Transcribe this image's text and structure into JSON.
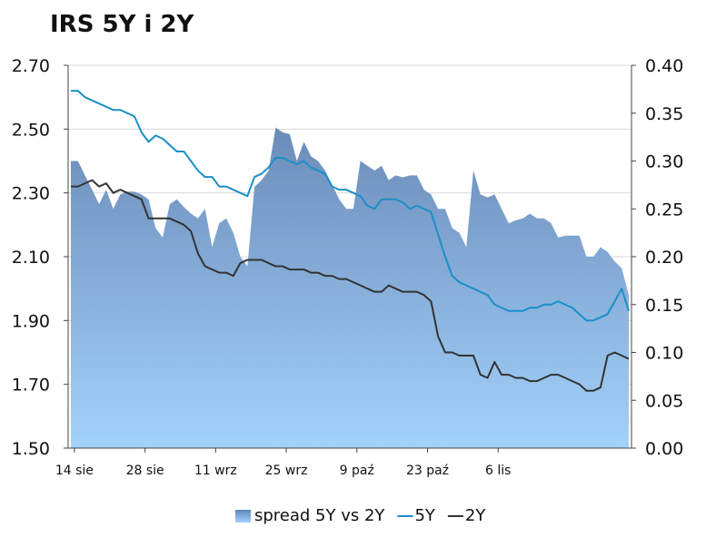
{
  "chart_data": {
    "type": "line",
    "title": "IRS 5Y i 2Y",
    "xlabel": "",
    "ylabel": "",
    "y_left": {
      "min": 1.5,
      "max": 2.7,
      "ticks": [
        "2.70",
        "2.50",
        "2.30",
        "2.10",
        "1.90",
        "1.70",
        "1.50"
      ]
    },
    "y_right": {
      "min": 0.0,
      "max": 0.4,
      "ticks": [
        "0.40",
        "0.35",
        "0.30",
        "0.25",
        "0.20",
        "0.15",
        "0.10",
        "0.05",
        "0.00"
      ]
    },
    "x_ticks": [
      "14 sie",
      "28 sie",
      "11 wrz",
      "25 wrz",
      "9 paź",
      "23 paź",
      "6 lis"
    ],
    "grid": "horizontal",
    "legend_position": "bottom",
    "series": [
      {
        "name": "spread 5Y vs 2Y",
        "kind": "area",
        "axis": "right",
        "color": "#6f95c0",
        "values": [
          0.3,
          0.3,
          0.285,
          0.27,
          0.255,
          0.27,
          0.25,
          0.265,
          0.268,
          0.268,
          0.265,
          0.26,
          0.23,
          0.22,
          0.255,
          0.26,
          0.252,
          0.245,
          0.24,
          0.25,
          0.21,
          0.235,
          0.24,
          0.225,
          0.2,
          0.19,
          0.273,
          0.28,
          0.29,
          0.335,
          0.33,
          0.328,
          0.3,
          0.32,
          0.305,
          0.3,
          0.29,
          0.275,
          0.26,
          0.25,
          0.25,
          0.3,
          0.295,
          0.29,
          0.295,
          0.28,
          0.285,
          0.283,
          0.285,
          0.285,
          0.27,
          0.265,
          0.25,
          0.25,
          0.23,
          0.225,
          0.21,
          0.29,
          0.265,
          0.262,
          0.265,
          0.25,
          0.235,
          0.238,
          0.24,
          0.245,
          0.24,
          0.24,
          0.235,
          0.22,
          0.222,
          0.222,
          0.222,
          0.2,
          0.2,
          0.21,
          0.205,
          0.195,
          0.188,
          0.16
        ]
      },
      {
        "name": "5Y",
        "kind": "line",
        "axis": "left",
        "color": "#1b8fc8",
        "values": [
          2.62,
          2.62,
          2.6,
          2.59,
          2.58,
          2.57,
          2.56,
          2.56,
          2.55,
          2.54,
          2.49,
          2.46,
          2.48,
          2.47,
          2.45,
          2.43,
          2.43,
          2.4,
          2.37,
          2.35,
          2.35,
          2.32,
          2.32,
          2.31,
          2.3,
          2.29,
          2.35,
          2.36,
          2.38,
          2.41,
          2.41,
          2.4,
          2.39,
          2.4,
          2.38,
          2.37,
          2.36,
          2.32,
          2.31,
          2.31,
          2.3,
          2.29,
          2.26,
          2.25,
          2.28,
          2.28,
          2.28,
          2.27,
          2.25,
          2.26,
          2.25,
          2.24,
          2.17,
          2.1,
          2.04,
          2.02,
          2.01,
          2.0,
          1.99,
          1.98,
          1.95,
          1.94,
          1.93,
          1.93,
          1.93,
          1.94,
          1.94,
          1.95,
          1.95,
          1.96,
          1.95,
          1.94,
          1.92,
          1.9,
          1.9,
          1.91,
          1.92,
          1.96,
          2.0,
          1.93
        ]
      },
      {
        "name": "2Y",
        "kind": "line",
        "axis": "left",
        "color": "#333333",
        "values": [
          2.32,
          2.32,
          2.33,
          2.34,
          2.32,
          2.33,
          2.3,
          2.31,
          2.3,
          2.29,
          2.28,
          2.22,
          2.22,
          2.22,
          2.22,
          2.21,
          2.2,
          2.18,
          2.11,
          2.07,
          2.06,
          2.05,
          2.05,
          2.04,
          2.08,
          2.09,
          2.09,
          2.09,
          2.08,
          2.07,
          2.07,
          2.06,
          2.06,
          2.06,
          2.05,
          2.05,
          2.04,
          2.04,
          2.03,
          2.03,
          2.02,
          2.01,
          2.0,
          1.99,
          1.99,
          2.01,
          2.0,
          1.99,
          1.99,
          1.99,
          1.98,
          1.96,
          1.85,
          1.8,
          1.8,
          1.79,
          1.79,
          1.79,
          1.73,
          1.72,
          1.77,
          1.73,
          1.73,
          1.72,
          1.72,
          1.71,
          1.71,
          1.72,
          1.73,
          1.73,
          1.72,
          1.71,
          1.7,
          1.68,
          1.68,
          1.69,
          1.79,
          1.8,
          1.79,
          1.78
        ]
      }
    ],
    "legend": [
      {
        "label": "spread 5Y vs 2Y",
        "swatch": "area"
      },
      {
        "label": "5Y",
        "swatch": "line"
      },
      {
        "label": "2Y",
        "swatch": "line"
      }
    ]
  }
}
